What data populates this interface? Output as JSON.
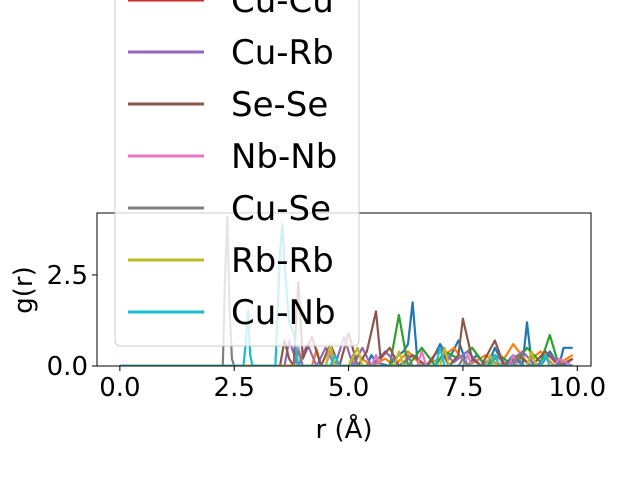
{
  "chart_data": {
    "type": "line",
    "title": "",
    "xlabel": "r (Å)",
    "ylabel": "g(r)",
    "xlim": [
      -0.5,
      10.3
    ],
    "ylim": [
      0,
      4.2
    ],
    "xticks": [
      0.0,
      2.5,
      5.0,
      7.5,
      10.0
    ],
    "xtick_labels": [
      "0.0",
      "2.5",
      "5.0",
      "7.5",
      "10.0"
    ],
    "yticks": [
      0.0,
      2.5
    ],
    "ytick_labels": [
      "0.0",
      "2.5"
    ],
    "grid": false,
    "legend_position": "upper-center, overflowing the axes",
    "series": [
      {
        "name": "",
        "color": "#1f77b4",
        "x": [
          0.0,
          5.4,
          5.5,
          5.6,
          5.9,
          6.0,
          6.2,
          6.3,
          6.4,
          6.5,
          6.7,
          6.8,
          7.0,
          7.2,
          7.4,
          7.6,
          7.8,
          8.0,
          8.1,
          8.2,
          8.4,
          8.6,
          8.8,
          8.9,
          9.0,
          9.2,
          9.4,
          9.6,
          9.7,
          9.9
        ],
        "y": [
          0.0,
          0.0,
          0.3,
          0.1,
          0.0,
          0.2,
          0.4,
          0.6,
          1.75,
          0.2,
          0.0,
          0.1,
          0.6,
          0.2,
          0.7,
          0.0,
          0.3,
          0.0,
          0.2,
          0.5,
          0.0,
          0.3,
          0.0,
          1.2,
          0.1,
          0.0,
          0.4,
          0.0,
          0.5,
          0.5
        ]
      },
      {
        "name": "",
        "color": "#ff7f0e",
        "x": [
          0.0,
          4.2,
          4.3,
          4.4,
          5.0,
          5.2,
          5.5,
          5.8,
          6.0,
          6.3,
          6.6,
          7.0,
          7.3,
          7.6,
          8.0,
          8.3,
          8.6,
          8.9,
          9.2,
          9.5,
          9.9
        ],
        "y": [
          0.0,
          0.0,
          0.45,
          0.0,
          0.0,
          0.3,
          0.0,
          0.2,
          0.0,
          0.4,
          0.0,
          0.2,
          0.5,
          0.0,
          0.3,
          0.0,
          0.6,
          0.1,
          0.4,
          0.0,
          0.3
        ]
      },
      {
        "name": "",
        "color": "#2ca02c",
        "x": [
          0.0,
          5.9,
          6.1,
          6.3,
          6.6,
          6.9,
          7.1,
          7.4,
          7.7,
          8.0,
          8.3,
          8.6,
          8.9,
          9.2,
          9.4,
          9.6,
          9.9
        ],
        "y": [
          0.0,
          0.0,
          1.4,
          0.0,
          0.5,
          0.0,
          0.4,
          0.2,
          0.5,
          0.0,
          0.3,
          0.0,
          0.5,
          0.1,
          0.85,
          0.0,
          0.2
        ]
      },
      {
        "name": "Cu-Cu",
        "color": "#d62728",
        "x": [
          0.0,
          9.9
        ],
        "y": [
          0.0,
          0.0
        ]
      },
      {
        "name": "Cu-Rb",
        "color": "#9467bd",
        "x": [
          0.0,
          3.6,
          3.7,
          3.9,
          4.1,
          4.3,
          4.5,
          4.7,
          4.9,
          5.1,
          5.3,
          5.5,
          5.8,
          6.1,
          6.4,
          6.7,
          7.0,
          7.3,
          7.6,
          7.9,
          8.2,
          8.5,
          8.8,
          9.1,
          9.4,
          9.7,
          9.9
        ],
        "y": [
          0.0,
          0.0,
          0.7,
          0.0,
          0.6,
          0.0,
          0.5,
          0.0,
          0.8,
          0.0,
          0.5,
          0.0,
          0.4,
          0.0,
          0.3,
          0.0,
          0.5,
          0.1,
          0.4,
          0.0,
          0.3,
          0.0,
          0.4,
          0.0,
          0.3,
          0.0,
          0.2
        ]
      },
      {
        "name": "Se-Se",
        "color": "#8c564b",
        "x": [
          0.0,
          3.5,
          3.6,
          3.7,
          3.8,
          3.9,
          4.0,
          4.2,
          4.4,
          4.6,
          4.8,
          5.0,
          5.2,
          5.4,
          5.6,
          5.7,
          5.9,
          6.1,
          6.4,
          6.7,
          7.0,
          7.2,
          7.4,
          7.5,
          7.7,
          7.9,
          8.2,
          8.4,
          8.7,
          9.0,
          9.3,
          9.6,
          9.9
        ],
        "y": [
          0.0,
          0.0,
          0.7,
          0.2,
          0.0,
          2.3,
          0.2,
          0.8,
          0.0,
          0.6,
          0.0,
          0.9,
          0.0,
          0.4,
          1.5,
          0.2,
          0.5,
          0.0,
          0.3,
          0.0,
          0.5,
          0.0,
          0.3,
          1.3,
          0.2,
          0.0,
          0.7,
          0.0,
          0.3,
          0.0,
          0.4,
          0.0,
          0.2
        ]
      },
      {
        "name": "Nb-Nb",
        "color": "#e377c2",
        "x": [
          0.0,
          3.8,
          3.9,
          4.0,
          4.5,
          4.6,
          4.7,
          5.5,
          5.6,
          5.7,
          6.5,
          6.6,
          6.7,
          7.5,
          7.6,
          7.7,
          8.5,
          8.6,
          8.7,
          9.5,
          9.6,
          9.9
        ],
        "y": [
          0.0,
          0.0,
          0.5,
          0.0,
          0.0,
          0.4,
          0.0,
          0.0,
          0.3,
          0.0,
          0.0,
          0.4,
          0.0,
          0.0,
          0.3,
          0.0,
          0.0,
          0.3,
          0.0,
          0.0,
          0.2,
          0.0
        ]
      },
      {
        "name": "Cu-Se",
        "color": "#7f7f7f",
        "x": [
          0.0,
          2.25,
          2.3,
          2.35,
          2.4,
          2.45,
          2.5,
          3.8,
          3.9,
          4.0,
          5.0,
          5.1,
          5.2,
          6.2,
          6.3,
          6.4,
          7.4,
          7.5,
          7.6,
          8.6,
          8.7,
          8.8,
          9.9
        ],
        "y": [
          0.0,
          0.0,
          2.5,
          4.1,
          1.6,
          0.2,
          0.0,
          0.0,
          0.4,
          0.0,
          0.0,
          0.3,
          0.0,
          0.0,
          0.3,
          0.0,
          0.0,
          0.2,
          0.0,
          0.0,
          0.3,
          0.0,
          0.0
        ]
      },
      {
        "name": "Rb-Rb",
        "color": "#bcbd22",
        "x": [
          0.0,
          4.5,
          4.6,
          4.7,
          5.0,
          5.2,
          5.3,
          6.0,
          6.1,
          6.2,
          7.0,
          7.1,
          7.2,
          8.0,
          8.1,
          8.2,
          8.9,
          9.0,
          9.1,
          9.9
        ],
        "y": [
          0.0,
          0.0,
          0.6,
          0.0,
          0.0,
          0.5,
          0.0,
          0.0,
          0.4,
          0.0,
          0.0,
          0.5,
          0.0,
          0.0,
          0.3,
          0.0,
          0.0,
          0.4,
          0.0,
          0.0
        ]
      },
      {
        "name": "Cu-Nb",
        "color": "#17becf",
        "x": [
          0.0,
          2.7,
          2.75,
          2.8,
          2.85,
          2.9,
          3.4,
          3.5,
          3.55,
          3.6,
          3.7,
          3.8,
          3.9,
          4.6,
          4.7,
          4.8,
          6.9,
          7.0,
          7.1,
          8.1,
          8.2,
          8.3,
          9.2,
          9.3,
          9.4,
          9.9
        ],
        "y": [
          0.0,
          0.0,
          0.6,
          1.5,
          0.3,
          0.0,
          0.0,
          3.1,
          3.9,
          2.8,
          1.2,
          0.9,
          0.0,
          0.0,
          0.3,
          0.0,
          0.0,
          0.5,
          0.0,
          0.0,
          0.3,
          0.0,
          0.0,
          0.3,
          0.0,
          0.0
        ]
      }
    ],
    "legend": {
      "entries": [
        {
          "label": "Cu-Cu",
          "color": "#d62728"
        },
        {
          "label": "Cu-Rb",
          "color": "#9467bd"
        },
        {
          "label": "Se-Se",
          "color": "#8c564b"
        },
        {
          "label": "Nb-Nb",
          "color": "#e377c2"
        },
        {
          "label": "Cu-Se",
          "color": "#7f7f7f"
        },
        {
          "label": "Rb-Rb",
          "color": "#bcbd22"
        },
        {
          "label": "Cu-Nb",
          "color": "#17becf"
        }
      ]
    }
  }
}
